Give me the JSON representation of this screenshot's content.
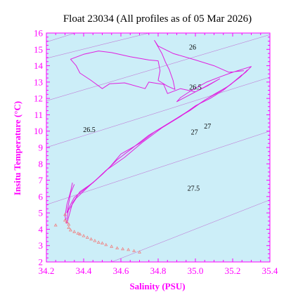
{
  "chart_data": {
    "type": "scatter",
    "title": "Float 23034  (All profiles as of 05 Mar 2026)",
    "xlabel": "Salinity (PSU)",
    "ylabel": "Insitu Temperature (°C)",
    "xlim": [
      34.2,
      35.4
    ],
    "ylim": [
      2,
      16
    ],
    "xticks": [
      "34.2",
      "34.4",
      "34.6",
      "34.8",
      "35.0",
      "35.2",
      "35.4"
    ],
    "yticks": [
      "2",
      "3",
      "4",
      "5",
      "6",
      "7",
      "8",
      "9",
      "10",
      "11",
      "12",
      "13",
      "14",
      "15",
      "16"
    ],
    "grid": false,
    "colors": {
      "background": "#cceef8",
      "axis": "#ff00ff",
      "profile_line": "#e020e0",
      "deep_points": "#f08080",
      "isopycnal": "#c080d8"
    },
    "isopycnal_labels": [
      {
        "label": "26",
        "salinity": 34.985,
        "temperature": 15.0
      },
      {
        "label": "26.5",
        "salinity": 35.0,
        "temperature": 12.55
      },
      {
        "label": "26.5",
        "salinity": 34.43,
        "temperature": 9.95
      },
      {
        "label": "27",
        "salinity": 35.065,
        "temperature": 10.15
      },
      {
        "label": "27",
        "salinity": 34.995,
        "temperature": 9.8
      },
      {
        "label": "27.5",
        "salinity": 34.99,
        "temperature": 6.35
      }
    ],
    "isopycnals": [
      {
        "sigma": 25.5,
        "points": [
          [
            34.2,
            15.45
          ],
          [
            35.4,
            19.7
          ]
        ]
      },
      {
        "sigma": 26,
        "points": [
          [
            34.2,
            14.45
          ],
          [
            34.5,
            15.3
          ],
          [
            35.4,
            17.8
          ]
        ]
      },
      {
        "sigma": 26.5,
        "points": [
          [
            34.2,
            11.85
          ],
          [
            35.4,
            15.9
          ]
        ]
      },
      {
        "sigma": 27,
        "points": [
          [
            34.2,
            9.0
          ],
          [
            35.4,
            13.3
          ]
        ]
      },
      {
        "sigma": 27.5,
        "points": [
          [
            34.2,
            5.5
          ],
          [
            35.4,
            10.0
          ]
        ]
      },
      {
        "sigma": 28,
        "points": [
          [
            34.55,
            2.0
          ],
          [
            35.4,
            5.8
          ]
        ]
      }
    ],
    "series": [
      {
        "kind": "line",
        "points": [
          [
            34.34,
            6.85
          ],
          [
            34.33,
            6.3
          ],
          [
            34.31,
            5.5
          ],
          [
            34.3,
            4.8
          ],
          [
            34.31,
            4.35
          ],
          [
            34.34,
            5.6
          ],
          [
            34.38,
            6.3
          ],
          [
            34.45,
            6.85
          ],
          [
            34.52,
            7.6
          ],
          [
            34.62,
            8.4
          ],
          [
            34.72,
            9.35
          ],
          [
            34.82,
            10.2
          ],
          [
            34.92,
            10.9
          ],
          [
            35.0,
            11.55
          ],
          [
            35.08,
            12.0
          ],
          [
            35.15,
            12.5
          ],
          [
            35.22,
            13.15
          ],
          [
            35.27,
            13.6
          ],
          [
            35.3,
            13.95
          ],
          [
            35.2,
            13.6
          ],
          [
            35.14,
            13.35
          ],
          [
            35.06,
            13.0
          ],
          [
            34.98,
            12.5
          ],
          [
            34.92,
            12.05
          ],
          [
            34.9,
            11.8
          ],
          [
            35.05,
            12.7
          ],
          [
            35.13,
            13.2
          ],
          [
            35.07,
            12.8
          ],
          [
            35.0,
            12.4
          ],
          [
            34.92,
            12.6
          ],
          [
            34.85,
            12.3
          ],
          [
            34.83,
            12.85
          ],
          [
            34.75,
            13.0
          ],
          [
            34.73,
            12.6
          ],
          [
            34.62,
            12.95
          ],
          [
            34.54,
            12.9
          ],
          [
            34.5,
            12.6
          ],
          [
            34.44,
            13.1
          ],
          [
            34.38,
            13.55
          ],
          [
            34.36,
            14.0
          ],
          [
            34.33,
            14.4
          ],
          [
            34.4,
            14.7
          ],
          [
            34.48,
            14.9
          ],
          [
            34.55,
            14.8
          ],
          [
            34.65,
            14.55
          ],
          [
            34.75,
            14.35
          ],
          [
            34.8,
            14.3
          ],
          [
            34.81,
            13.7
          ],
          [
            34.8,
            13.1
          ],
          [
            34.85,
            12.75
          ],
          [
            34.89,
            12.55
          ],
          [
            34.88,
            13.1
          ],
          [
            34.86,
            13.75
          ],
          [
            34.84,
            14.2
          ],
          [
            34.82,
            14.75
          ],
          [
            34.78,
            15.55
          ],
          [
            34.8,
            15.2
          ],
          [
            34.88,
            14.75
          ],
          [
            35.0,
            14.35
          ],
          [
            35.1,
            14.0
          ],
          [
            35.18,
            13.6
          ],
          [
            35.26,
            13.7
          ]
        ]
      },
      {
        "kind": "line",
        "points": [
          [
            34.35,
            6.75
          ],
          [
            34.33,
            6.2
          ],
          [
            34.32,
            5.6
          ],
          [
            34.31,
            5.0
          ],
          [
            34.36,
            5.9
          ],
          [
            34.42,
            6.55
          ],
          [
            34.5,
            7.35
          ],
          [
            34.58,
            8.25
          ],
          [
            34.66,
            8.95
          ],
          [
            34.75,
            9.75
          ],
          [
            34.86,
            10.5
          ],
          [
            34.95,
            11.15
          ],
          [
            35.03,
            11.75
          ],
          [
            35.1,
            12.25
          ],
          [
            35.17,
            12.7
          ],
          [
            35.24,
            13.3
          ],
          [
            35.28,
            13.75
          ]
        ]
      },
      {
        "kind": "line",
        "points": [
          [
            34.31,
            4.6
          ],
          [
            34.32,
            5.3
          ],
          [
            34.35,
            5.95
          ],
          [
            34.4,
            6.4
          ],
          [
            34.47,
            7.05
          ],
          [
            34.54,
            7.8
          ],
          [
            34.6,
            8.6
          ],
          [
            34.7,
            9.25
          ],
          [
            34.78,
            9.95
          ],
          [
            34.88,
            10.65
          ],
          [
            34.97,
            11.25
          ],
          [
            35.05,
            11.9
          ],
          [
            35.12,
            12.35
          ],
          [
            35.19,
            12.85
          ],
          [
            35.25,
            13.45
          ]
        ]
      },
      {
        "kind": "points",
        "points": [
          [
            34.25,
            4.25
          ],
          [
            34.3,
            4.9
          ],
          [
            34.3,
            4.55
          ],
          [
            34.31,
            4.45
          ],
          [
            34.32,
            4.3
          ],
          [
            34.32,
            4.1
          ],
          [
            34.33,
            3.95
          ],
          [
            34.35,
            3.85
          ],
          [
            34.37,
            3.75
          ],
          [
            34.38,
            3.7
          ],
          [
            34.4,
            3.6
          ],
          [
            34.42,
            3.5
          ],
          [
            34.44,
            3.4
          ],
          [
            34.46,
            3.3
          ],
          [
            34.48,
            3.2
          ],
          [
            34.5,
            3.15
          ],
          [
            34.52,
            3.05
          ],
          [
            34.55,
            2.95
          ],
          [
            34.58,
            2.85
          ],
          [
            34.61,
            2.8
          ],
          [
            34.64,
            2.75
          ],
          [
            34.67,
            2.68
          ],
          [
            34.7,
            2.6
          ]
        ]
      }
    ]
  }
}
